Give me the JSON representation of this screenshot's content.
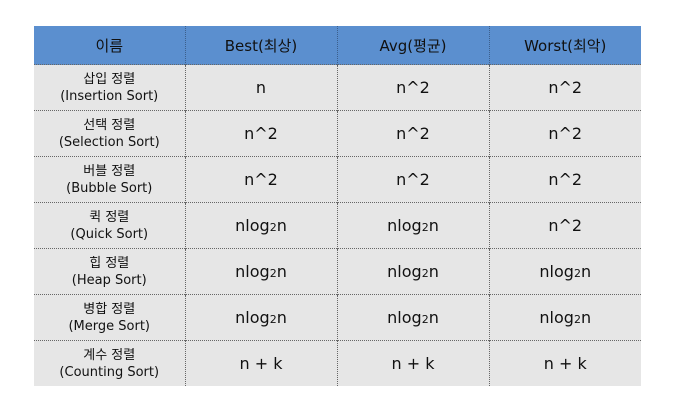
{
  "table": {
    "headers": [
      "이름",
      "Best(최상)",
      "Avg(평균)",
      "Worst(최악)"
    ],
    "rows": [
      {
        "name_ko": "삽입 정렬",
        "name_en": "(Insertion Sort)",
        "best": "n",
        "avg": "n^2",
        "worst": "n^2"
      },
      {
        "name_ko": "선택 정렬",
        "name_en": "(Selection Sort)",
        "best": "n^2",
        "avg": "n^2",
        "worst": "n^2"
      },
      {
        "name_ko": "버블 정렬",
        "name_en": "(Bubble Sort)",
        "best": "n^2",
        "avg": "n^2",
        "worst": "n^2"
      },
      {
        "name_ko": "퀵 정렬",
        "name_en": "(Quick Sort)",
        "best": "nlog2n",
        "avg": "nlog2n",
        "worst": "n^2"
      },
      {
        "name_ko": "힙 정렬",
        "name_en": "(Heap Sort)",
        "best": "nlog2n",
        "avg": "nlog2n",
        "worst": "nlog2n"
      },
      {
        "name_ko": "병합 정렬",
        "name_en": "(Merge Sort)",
        "best": "nlog2n",
        "avg": "nlog2n",
        "worst": "nlog2n"
      },
      {
        "name_ko": "계수 정렬",
        "name_en": "(Counting Sort)",
        "best": "n + k",
        "avg": "n + k",
        "worst": "n + k"
      }
    ],
    "colors": {
      "header_bg": "#5b8fcf",
      "body_bg": "#e6e6e6"
    }
  }
}
